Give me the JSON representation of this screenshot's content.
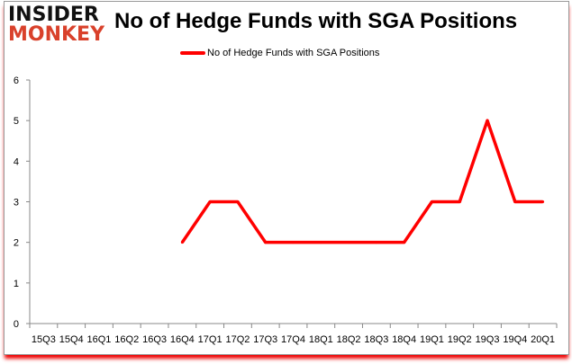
{
  "logo": {
    "line1": "INSIDER",
    "line2": "MONKEY"
  },
  "chart_data": {
    "type": "line",
    "title": "No of Hedge Funds with SGA Positions",
    "xlabel": "",
    "ylabel": "",
    "categories": [
      "15Q3",
      "15Q4",
      "16Q1",
      "16Q2",
      "16Q3",
      "16Q4",
      "17Q1",
      "17Q2",
      "17Q3",
      "17Q4",
      "18Q1",
      "18Q2",
      "18Q3",
      "18Q4",
      "19Q1",
      "19Q2",
      "19Q3",
      "19Q4",
      "20Q1"
    ],
    "series": [
      {
        "name": "No of Hedge Funds with SGA Positions",
        "color": "#ff0000",
        "values": [
          null,
          null,
          null,
          null,
          null,
          2,
          3,
          3,
          2,
          2,
          2,
          2,
          2,
          2,
          3,
          3,
          5,
          3,
          3
        ]
      }
    ],
    "ylim": [
      0,
      6
    ],
    "yticks": [
      0,
      1,
      2,
      3,
      4,
      5,
      6
    ],
    "grid": false,
    "legend": "top"
  }
}
